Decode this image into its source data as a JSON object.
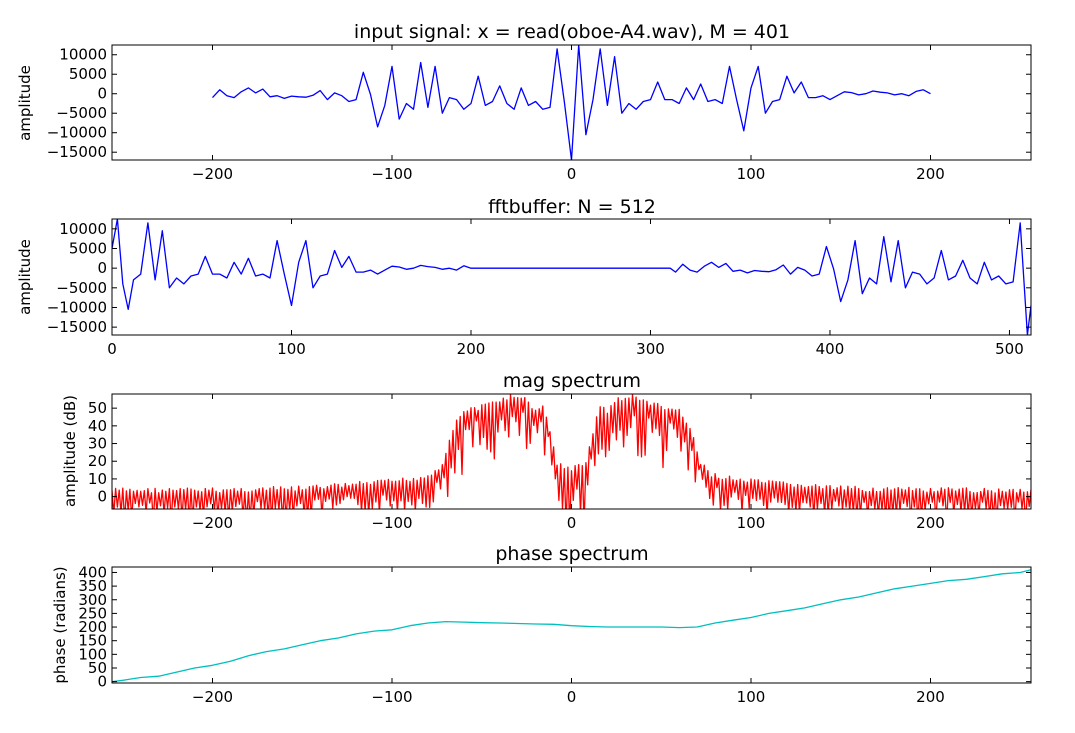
{
  "chart_data": [
    {
      "type": "line",
      "title": "input signal: x = read(oboe-A4.wav), M = 401",
      "xlabel": "",
      "ylabel": "amplitude",
      "xlim": [
        -256,
        256
      ],
      "ylim": [
        -17000,
        12500
      ],
      "xticks": [
        -200,
        -100,
        0,
        100,
        200
      ],
      "xtick_labels": [
        "−200",
        "−100",
        "0",
        "100",
        "200"
      ],
      "yticks": [
        10000,
        5000,
        0,
        -5000,
        -10000,
        -15000
      ],
      "ytick_labels": [
        "10000",
        "5000",
        "0",
        "−5000",
        "−10000",
        "−15000"
      ],
      "grid": false,
      "color": "#0000ff",
      "series": [
        {
          "x": [
            -200,
            -196,
            -192,
            -188,
            -184,
            -180,
            -176,
            -172,
            -168,
            -164,
            -160,
            -156,
            -152,
            -148,
            -144,
            -140,
            -136,
            -132,
            -128,
            -124,
            -120,
            -116,
            -112,
            -108,
            -104,
            -100,
            -96,
            -92,
            -88,
            -84,
            -80,
            -76,
            -72,
            -68,
            -64,
            -60,
            -56,
            -52,
            -48,
            -44,
            -40,
            -36,
            -32,
            -28,
            -24,
            -20,
            -16,
            -12,
            -8,
            -4,
            0,
            4,
            8,
            12,
            16,
            20,
            24,
            28,
            32,
            36,
            40,
            44,
            48,
            52,
            56,
            60,
            64,
            68,
            72,
            76,
            80,
            84,
            88,
            92,
            96,
            100,
            104,
            108,
            112,
            116,
            120,
            124,
            128,
            132,
            136,
            140,
            144,
            148,
            152,
            156,
            160,
            164,
            168,
            172,
            176,
            180,
            184,
            188,
            192,
            196,
            200
          ],
          "y": [
            -1000,
            1000,
            -500,
            -1000,
            500,
            1500,
            200,
            1200,
            -800,
            -500,
            -1200,
            -600,
            -800,
            -900,
            -400,
            800,
            -1500,
            200,
            -500,
            -2000,
            -1500,
            5500,
            -200,
            -8500,
            -3000,
            7000,
            -6500,
            -2500,
            -4000,
            8000,
            -3500,
            7000,
            -5000,
            -1000,
            -1500,
            -4000,
            -2500,
            4500,
            -3000,
            -2000,
            2000,
            -2500,
            -4000,
            1500,
            -3000,
            -2000,
            -4000,
            -3500,
            11500,
            -2000,
            -17000,
            12500,
            -10500,
            -1500,
            11500,
            -3000,
            9500,
            -5000,
            -2500,
            -4000,
            -2000,
            -1500,
            3000,
            -1500,
            -1500,
            -2500,
            1500,
            -1500,
            2500,
            -2000,
            -1500,
            -2500,
            7000,
            -1500,
            -9500,
            1500,
            7000,
            -5000,
            -2000,
            -1500,
            4500,
            200,
            3000,
            -1000,
            -1000,
            -500,
            -1500,
            -500,
            500,
            300,
            -300,
            0,
            700,
            400,
            200,
            -300,
            0,
            -500,
            600,
            1000,
            0
          ]
        }
      ]
    },
    {
      "type": "line",
      "title": "fftbuffer: N = 512",
      "xlabel": "",
      "ylabel": "amplitude",
      "xlim": [
        0,
        512
      ],
      "ylim": [
        -17000,
        12500
      ],
      "xticks": [
        0,
        100,
        200,
        300,
        400,
        500
      ],
      "xtick_labels": [
        "0",
        "100",
        "200",
        "300",
        "400",
        "500"
      ],
      "yticks": [
        10000,
        5000,
        0,
        -5000,
        -10000,
        -15000
      ],
      "ytick_labels": [
        "10000",
        "5000",
        "0",
        "−5000",
        "−10000",
        "−15000"
      ],
      "grid": false,
      "color": "#0000ff",
      "series": [
        {
          "x": [
            0,
            3,
            6,
            9,
            12,
            16,
            20,
            24,
            28,
            32,
            36,
            40,
            44,
            48,
            52,
            56,
            60,
            64,
            68,
            72,
            76,
            80,
            84,
            88,
            92,
            96,
            100,
            104,
            108,
            112,
            116,
            120,
            124,
            128,
            132,
            136,
            140,
            144,
            148,
            152,
            156,
            160,
            164,
            168,
            172,
            176,
            180,
            184,
            188,
            192,
            196,
            200,
            240,
            280,
            311,
            314,
            318,
            322,
            326,
            330,
            334,
            338,
            342,
            346,
            350,
            354,
            358,
            362,
            366,
            370,
            374,
            378,
            382,
            386,
            390,
            394,
            398,
            402,
            406,
            410,
            414,
            418,
            422,
            426,
            430,
            434,
            438,
            442,
            446,
            450,
            454,
            458,
            462,
            466,
            470,
            474,
            478,
            482,
            486,
            490,
            494,
            498,
            502,
            506,
            510,
            512
          ],
          "y": [
            5000,
            12500,
            -4000,
            -10500,
            -3000,
            -1500,
            11500,
            -3000,
            9500,
            -5000,
            -2500,
            -4000,
            -2000,
            -1500,
            3000,
            -1500,
            -1500,
            -2500,
            1500,
            -1500,
            2500,
            -2000,
            -1500,
            -2500,
            7000,
            -1500,
            -9500,
            1500,
            7000,
            -5000,
            -2000,
            -1500,
            4500,
            200,
            3000,
            -1000,
            -1000,
            -500,
            -1500,
            -500,
            500,
            300,
            -300,
            0,
            700,
            400,
            200,
            -300,
            0,
            -500,
            600,
            0,
            0,
            0,
            0,
            -1000,
            1000,
            -500,
            -1000,
            500,
            1500,
            200,
            1200,
            -800,
            -500,
            -1200,
            -600,
            -800,
            -900,
            -400,
            800,
            -1500,
            200,
            -500,
            -2000,
            -1500,
            5500,
            -200,
            -8500,
            -3000,
            7000,
            -6500,
            -2500,
            -4000,
            8000,
            -3500,
            7000,
            -5000,
            -1000,
            -1500,
            -4000,
            -2500,
            4500,
            -3000,
            -2000,
            2000,
            -2500,
            -4000,
            1500,
            -3000,
            -2000,
            -4000,
            -3500,
            11500,
            -17000,
            -9500
          ]
        }
      ]
    },
    {
      "type": "line",
      "title": "mag spectrum",
      "xlabel": "",
      "ylabel": "amplitude (dB)",
      "xlim": [
        -256,
        256
      ],
      "ylim": [
        -7,
        58
      ],
      "xticks": [
        -200,
        -100,
        0,
        100,
        200
      ],
      "xtick_labels": [
        "−200",
        "−100",
        "0",
        "100",
        "200"
      ],
      "yticks": [
        50,
        40,
        30,
        20,
        10,
        0
      ],
      "ytick_labels": [
        "50",
        "40",
        "30",
        "20",
        "10",
        "0"
      ],
      "grid": false,
      "color": "#ff0000",
      "envelope": {
        "x": [
          -256,
          -200,
          -150,
          -100,
          -85,
          -78,
          -72,
          -66,
          -60,
          -50,
          -40,
          -34,
          -25,
          -20,
          -15,
          -8,
          0,
          8,
          15,
          20,
          25,
          34,
          40,
          50,
          60,
          66,
          72,
          78,
          85,
          100,
          150,
          200,
          256
        ],
        "y": [
          5,
          5,
          6,
          10,
          12,
          14,
          20,
          40,
          50,
          52,
          56,
          58,
          56,
          50,
          52,
          20,
          17,
          20,
          52,
          50,
          56,
          58,
          56,
          52,
          50,
          40,
          20,
          14,
          12,
          10,
          6,
          5,
          5
        ]
      },
      "series": []
    },
    {
      "type": "line",
      "title": "phase spectrum",
      "xlabel": "",
      "ylabel": "phase (radians)",
      "xlim": [
        -256,
        256
      ],
      "ylim": [
        -5,
        420
      ],
      "xticks": [
        -200,
        -100,
        0,
        100,
        200
      ],
      "xtick_labels": [
        "−200",
        "−100",
        "0",
        "100",
        "200"
      ],
      "yticks": [
        400,
        350,
        300,
        250,
        200,
        150,
        100,
        50,
        0
      ],
      "ytick_labels": [
        "400",
        "350",
        "300",
        "250",
        "200",
        "150",
        "100",
        "50",
        "0"
      ],
      "grid": false,
      "color": "#00bfbf",
      "series": [
        {
          "x": [
            -256,
            -250,
            -240,
            -230,
            -220,
            -210,
            -200,
            -190,
            -180,
            -170,
            -160,
            -150,
            -140,
            -130,
            -120,
            -110,
            -100,
            -90,
            -80,
            -70,
            -60,
            -50,
            -40,
            -30,
            -20,
            -10,
            0,
            10,
            20,
            30,
            40,
            50,
            60,
            70,
            80,
            90,
            100,
            110,
            120,
            130,
            140,
            150,
            160,
            170,
            180,
            190,
            200,
            210,
            220,
            230,
            240,
            250,
            256
          ],
          "y": [
            0,
            5,
            15,
            20,
            35,
            50,
            60,
            75,
            95,
            110,
            120,
            135,
            150,
            160,
            175,
            185,
            190,
            205,
            215,
            220,
            218,
            216,
            215,
            213,
            211,
            210,
            205,
            202,
            200,
            200,
            200,
            200,
            198,
            200,
            215,
            225,
            235,
            250,
            260,
            270,
            285,
            300,
            310,
            325,
            340,
            350,
            360,
            370,
            375,
            385,
            395,
            400,
            410
          ]
        }
      ]
    }
  ]
}
